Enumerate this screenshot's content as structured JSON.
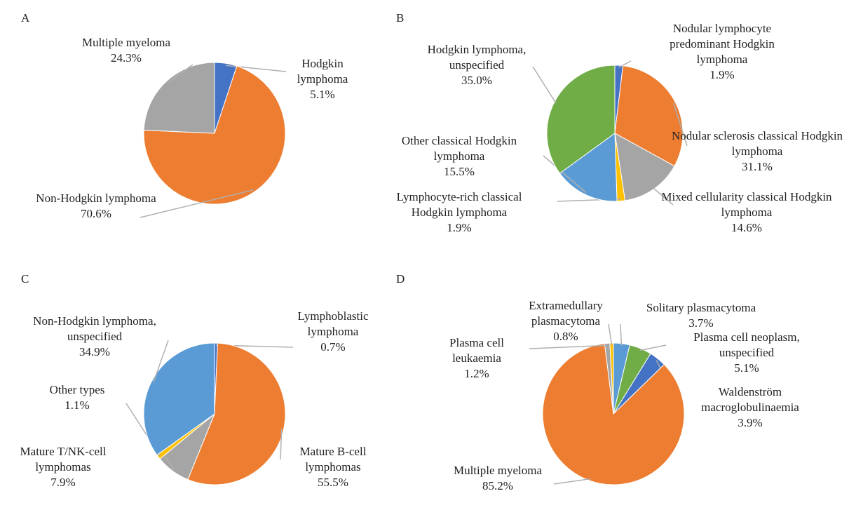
{
  "chart_data": [
    {
      "type": "pie",
      "title": "A",
      "categories": [
        "Hodgkin lymphoma",
        "Non-Hodgkin lymphoma",
        "Multiple myeloma"
      ],
      "values": [
        5.1,
        70.6,
        24.3
      ],
      "value_labels": [
        "5.1%",
        "70.6%",
        "24.3%"
      ],
      "colors": [
        "#4472C4",
        "#ED7D31",
        "#A5A5A5"
      ]
    },
    {
      "type": "pie",
      "title": "B",
      "categories": [
        "Nodular lymphocyte predominant Hodgkin lymphoma",
        "Nodular sclerosis classical Hodgkin lymphoma",
        "Mixed cellularity classical Hodgkin lymphoma",
        "Lymphocyte-rich classical Hodgkin lymphoma",
        "Other classical Hodgkin lymphoma",
        "Hodgkin lymphoma, unspecified"
      ],
      "values": [
        1.9,
        31.1,
        14.6,
        1.9,
        15.5,
        35.0
      ],
      "value_labels": [
        "1.9%",
        "31.1%",
        "14.6%",
        "1.9%",
        "15.5%",
        "35.0%"
      ],
      "colors": [
        "#4472C4",
        "#ED7D31",
        "#A5A5A5",
        "#FFC000",
        "#5B9BD5",
        "#70AD47"
      ]
    },
    {
      "type": "pie",
      "title": "C",
      "categories": [
        "Lymphoblastic lymphoma",
        "Mature B-cell lymphomas",
        "Mature T/NK-cell lymphomas",
        "Other types",
        "Non-Hodgkin lymphoma, unspecified"
      ],
      "values": [
        0.7,
        55.5,
        7.9,
        1.1,
        34.9
      ],
      "value_labels": [
        "0.7%",
        "55.5%",
        "7.9%",
        "1.1%",
        "34.9%"
      ],
      "colors": [
        "#4472C4",
        "#ED7D31",
        "#A5A5A5",
        "#FFC000",
        "#5B9BD5"
      ]
    },
    {
      "type": "pie",
      "title": "D",
      "categories": [
        "Solitary plasmacytoma",
        "Plasma cell neoplasm, unspecified",
        "Waldenström macroglobulinaemia",
        "Multiple myeloma",
        "Plasma cell leukaemia",
        "Extramedullary plasmacytoma"
      ],
      "values": [
        3.7,
        5.1,
        3.9,
        85.2,
        1.2,
        0.8
      ],
      "value_labels": [
        "3.7%",
        "5.1%",
        "3.9%",
        "85.2%",
        "1.2%",
        "0.8%"
      ],
      "colors": [
        "#5B9BD5",
        "#70AD47",
        "#4472C4",
        "#ED7D31",
        "#A5A5A5",
        "#FFC000"
      ]
    }
  ]
}
